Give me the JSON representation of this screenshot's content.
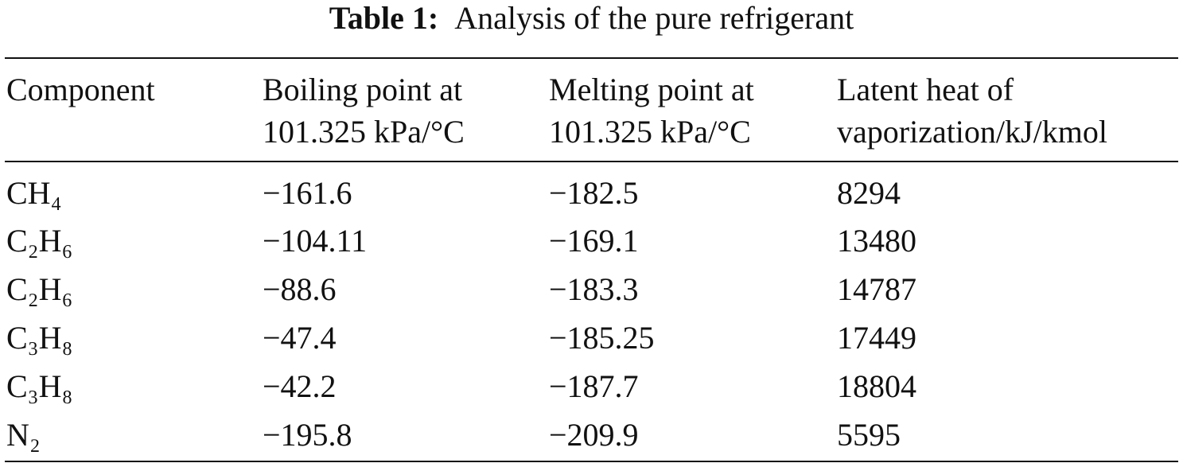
{
  "table": {
    "title": {
      "label": "Table 1:",
      "text": "Analysis of the pure refrigerant"
    },
    "header": [
      [
        "Component"
      ],
      [
        "Boiling point at",
        "101.325 kPa/°C"
      ],
      [
        "Melting point at",
        "101.325 kPa/°C"
      ],
      [
        "Latent heat of",
        "vaporization/kJ/kmol"
      ]
    ],
    "rows": [
      [
        "CH₄",
        "−161.6",
        "−182.5",
        "8294"
      ],
      [
        "C₂H₆",
        "−104.11",
        "−169.1",
        "13480"
      ],
      [
        "C₂H₆",
        "−88.6",
        "−183.3",
        "14787"
      ],
      [
        "C₃H₈",
        "−47.4",
        "−185.25",
        "17449"
      ],
      [
        "C₃H₈",
        "−42.2",
        "−187.7",
        "18804"
      ],
      [
        "N₂",
        "−195.8",
        "−209.9",
        "5595"
      ]
    ]
  }
}
